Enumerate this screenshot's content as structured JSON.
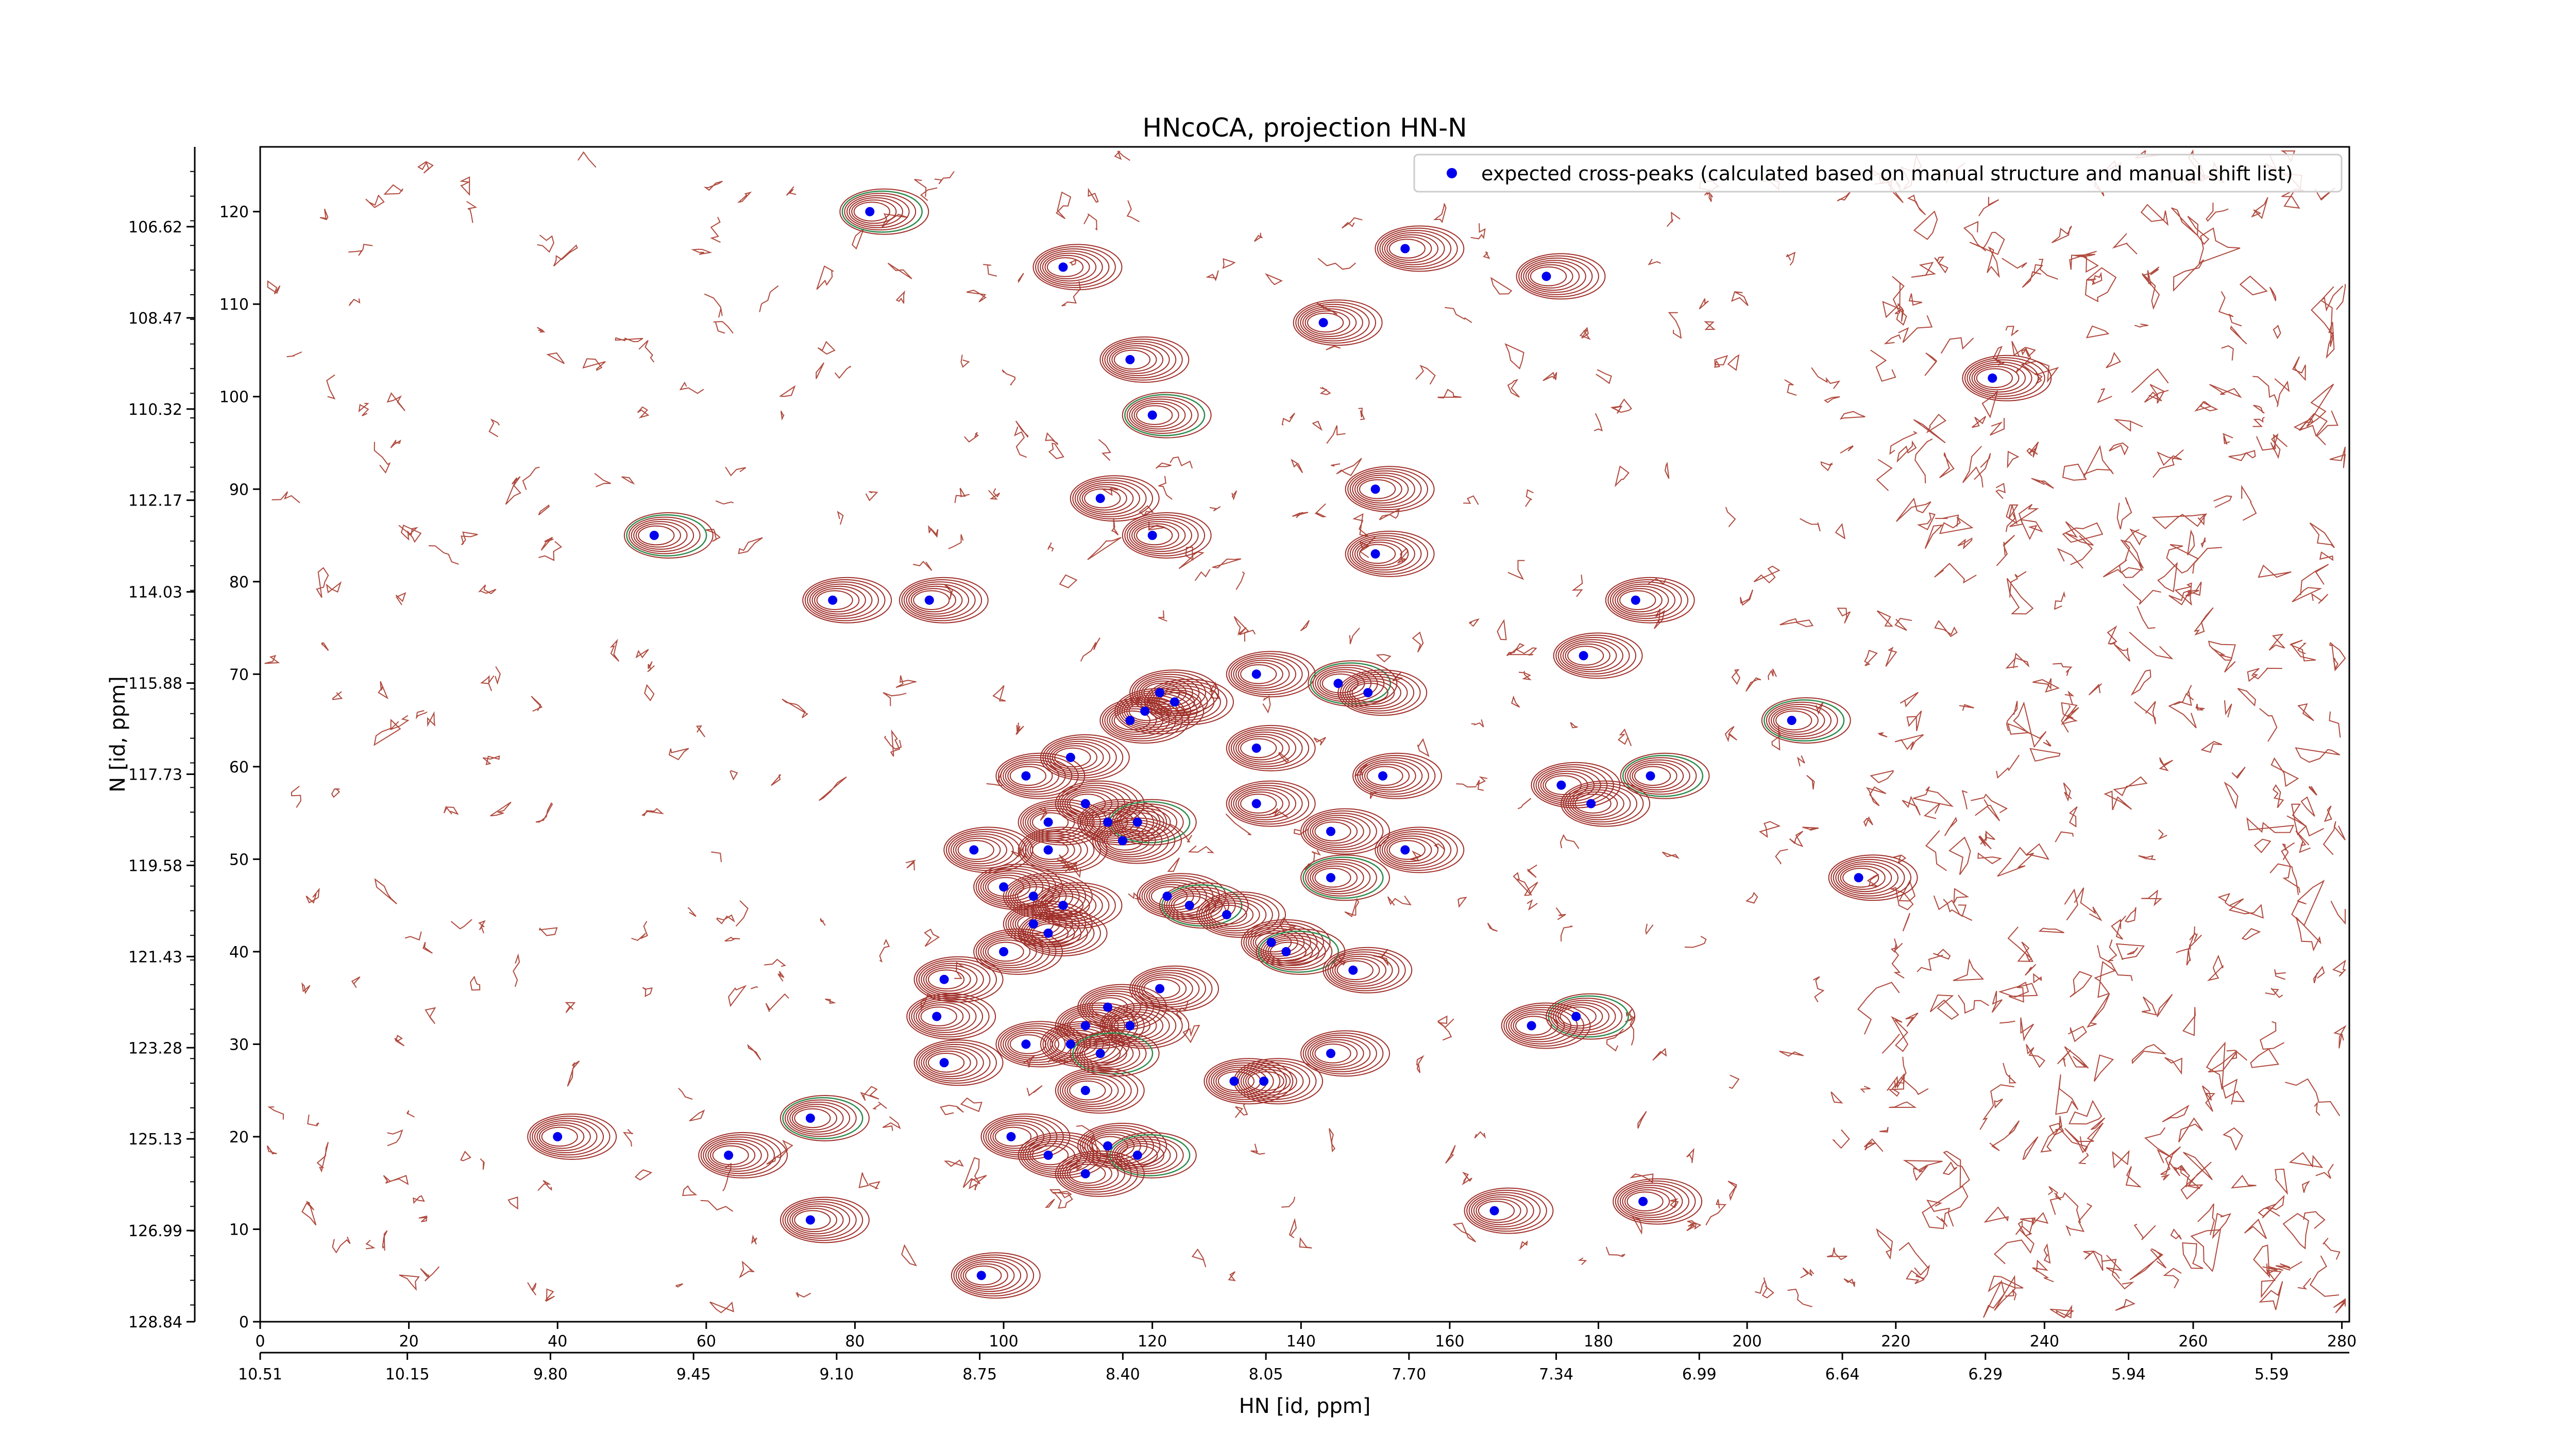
{
  "chart_data": {
    "type": "scatter",
    "title": "HNcoCA, projection HN-N",
    "xlabel": "HN [id, ppm]",
    "ylabel": "N [id, ppm]",
    "x_index": {
      "range": [
        0,
        281
      ],
      "ticks": [
        "0",
        "20",
        "40",
        "60",
        "80",
        "100",
        "120",
        "140",
        "160",
        "180",
        "200",
        "220",
        "240",
        "260",
        "280"
      ]
    },
    "x_ppm": {
      "range": [
        10.51,
        5.4
      ],
      "ticks": [
        "10.51",
        "10.15",
        "9.80",
        "9.45",
        "9.10",
        "8.75",
        "8.40",
        "8.05",
        "7.70",
        "7.34",
        "6.99",
        "6.64",
        "6.29",
        "5.94",
        "5.59"
      ]
    },
    "y_index": {
      "range": [
        0,
        127
      ],
      "ticks": [
        "0",
        "10",
        "20",
        "30",
        "40",
        "50",
        "60",
        "70",
        "80",
        "90",
        "100",
        "110",
        "120"
      ]
    },
    "y_ppm": {
      "range": [
        128.84,
        105.0
      ],
      "ticks": [
        "128.84",
        "126.99",
        "125.13",
        "123.28",
        "121.43",
        "119.58",
        "117.73",
        "115.88",
        "114.03",
        "112.17",
        "110.32",
        "108.47",
        "106.62"
      ]
    },
    "legend": {
      "position": "top-right",
      "entries": [
        "expected cross-peaks (calculated based on manual structure and manual shift list)"
      ]
    },
    "series": [
      {
        "name": "expected cross-peaks (calculated based on manual structure and manual shift list)",
        "color": "#0000ee",
        "points": [
          [
            82,
            120
          ],
          [
            108,
            114
          ],
          [
            154,
            116
          ],
          [
            143,
            108
          ],
          [
            173,
            113
          ],
          [
            117,
            104
          ],
          [
            120,
            98
          ],
          [
            233,
            102
          ],
          [
            113,
            89
          ],
          [
            150,
            90
          ],
          [
            120,
            85
          ],
          [
            150,
            83
          ],
          [
            53,
            85
          ],
          [
            77,
            78
          ],
          [
            90,
            78
          ],
          [
            185,
            78
          ],
          [
            178,
            72
          ],
          [
            134,
            70
          ],
          [
            145,
            69
          ],
          [
            149,
            68
          ],
          [
            121,
            68
          ],
          [
            119,
            66
          ],
          [
            117,
            65
          ],
          [
            123,
            67
          ],
          [
            206,
            65
          ],
          [
            134,
            62
          ],
          [
            109,
            61
          ],
          [
            103,
            59
          ],
          [
            151,
            59
          ],
          [
            175,
            58
          ],
          [
            187,
            59
          ],
          [
            179,
            56
          ],
          [
            134,
            56
          ],
          [
            111,
            56
          ],
          [
            106,
            54
          ],
          [
            114,
            54
          ],
          [
            118,
            54
          ],
          [
            144,
            53
          ],
          [
            116,
            52
          ],
          [
            96,
            51
          ],
          [
            106,
            51
          ],
          [
            154,
            51
          ],
          [
            144,
            48
          ],
          [
            215,
            48
          ],
          [
            100,
            47
          ],
          [
            104,
            46
          ],
          [
            108,
            45
          ],
          [
            122,
            46
          ],
          [
            125,
            45
          ],
          [
            130,
            44
          ],
          [
            104,
            43
          ],
          [
            106,
            42
          ],
          [
            136,
            41
          ],
          [
            100,
            40
          ],
          [
            138,
            40
          ],
          [
            147,
            38
          ],
          [
            92,
            37
          ],
          [
            121,
            36
          ],
          [
            114,
            34
          ],
          [
            91,
            33
          ],
          [
            177,
            33
          ],
          [
            171,
            32
          ],
          [
            111,
            32
          ],
          [
            117,
            32
          ],
          [
            103,
            30
          ],
          [
            109,
            30
          ],
          [
            113,
            29
          ],
          [
            92,
            28
          ],
          [
            144,
            29
          ],
          [
            131,
            26
          ],
          [
            135,
            26
          ],
          [
            111,
            25
          ],
          [
            74,
            22
          ],
          [
            40,
            20
          ],
          [
            101,
            20
          ],
          [
            114,
            19
          ],
          [
            63,
            18
          ],
          [
            106,
            18
          ],
          [
            118,
            18
          ],
          [
            111,
            16
          ],
          [
            166,
            12
          ],
          [
            186,
            13
          ],
          [
            74,
            11
          ],
          [
            97,
            5
          ]
        ]
      }
    ]
  }
}
